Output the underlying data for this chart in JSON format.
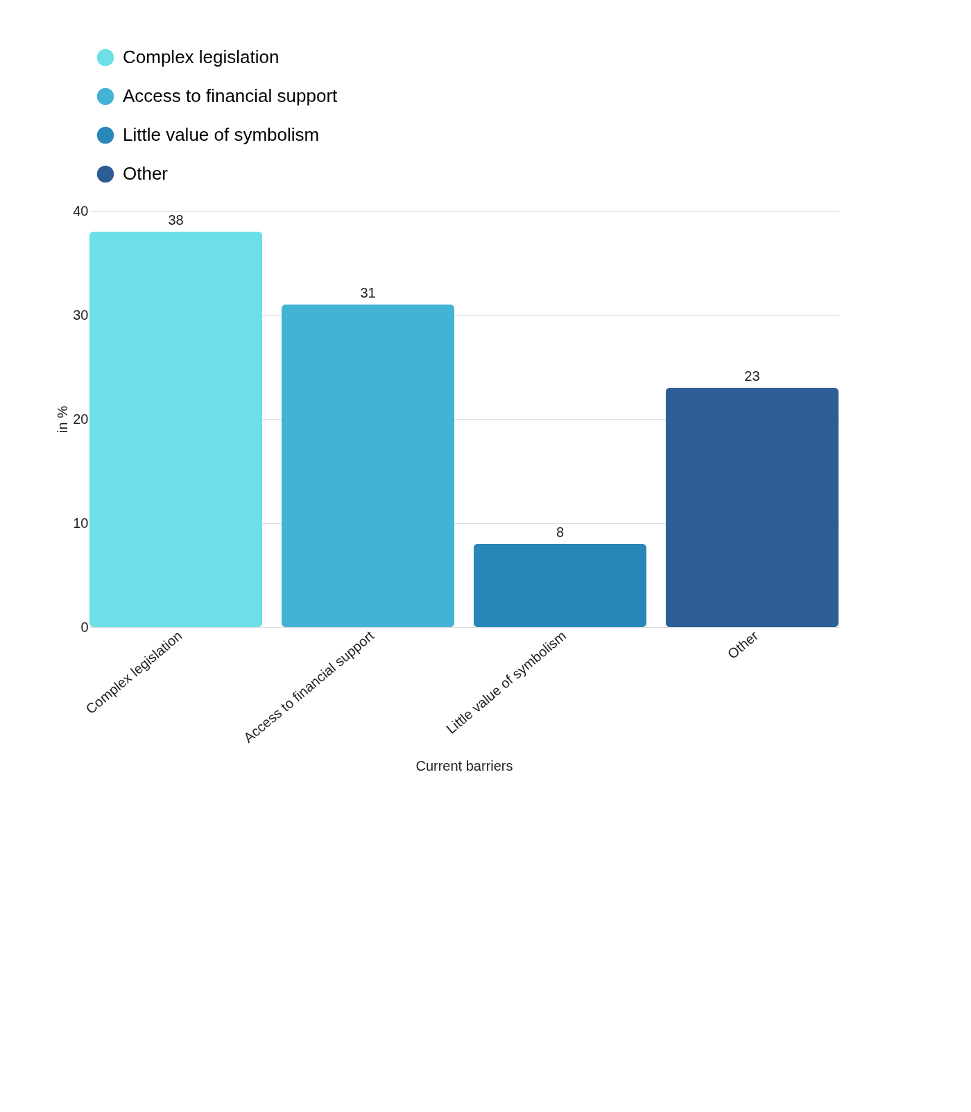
{
  "chart_data": {
    "type": "bar",
    "xlabel": "Current barriers",
    "ylabel": "in %",
    "categories": [
      "Complex legislation",
      "Access to financial support",
      "Little value of symbolism",
      "Other"
    ],
    "series": [
      {
        "name": "Complex legislation",
        "color": "#6ce0e6",
        "values": [
          38,
          null,
          null,
          null
        ]
      },
      {
        "name": "Access to financial support",
        "color": "#43b3d3",
        "values": [
          null,
          31,
          null,
          null
        ]
      },
      {
        "name": "Little value of symbolism",
        "color": "#2986b8",
        "values": [
          null,
          null,
          8,
          null
        ]
      },
      {
        "name": "Other",
        "color": "#2d5d95",
        "values": [
          null,
          null,
          null,
          23
        ]
      }
    ],
    "ylim": [
      0,
      40
    ],
    "yticks": [
      0,
      10,
      20,
      30,
      40
    ],
    "grid": "y",
    "legend": "top",
    "data_labels": true
  }
}
